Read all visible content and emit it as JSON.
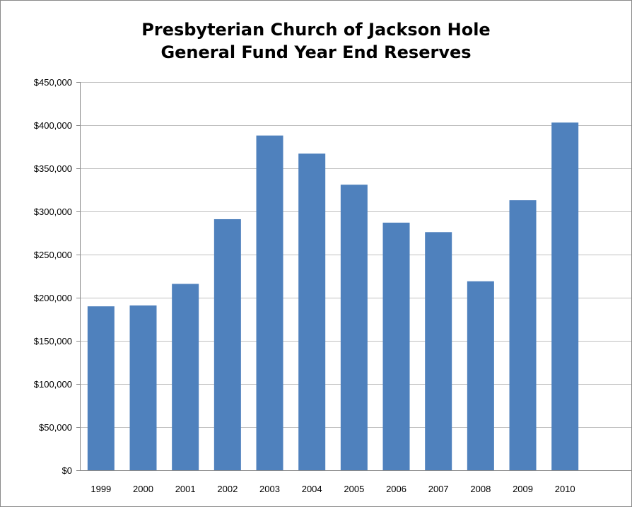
{
  "chart_data": {
    "type": "bar",
    "title_lines": [
      "Presbyterian Church of Jackson Hole",
      "General Fund Year End Reserves"
    ],
    "categories": [
      "1999",
      "2000",
      "2001",
      "2002",
      "2003",
      "2004",
      "2005",
      "2006",
      "2007",
      "2008",
      "2009",
      "2010"
    ],
    "values": [
      190000,
      191000,
      216000,
      291000,
      388000,
      367000,
      331000,
      287000,
      276000,
      219000,
      313000,
      403000
    ],
    "y_ticks": [
      "$0",
      "$50,000",
      "$100,000",
      "$150,000",
      "$200,000",
      "$250,000",
      "$300,000",
      "$350,000",
      "$400,000",
      "$450,000"
    ],
    "ylim": [
      0,
      450000
    ],
    "y_step": 50000,
    "xlabel": "",
    "ylabel": "",
    "grid": true,
    "legend": "none",
    "bar_color": "#4F81BD",
    "grid_color": "#C0C0C0",
    "axis_color": "#8A8A8A"
  }
}
